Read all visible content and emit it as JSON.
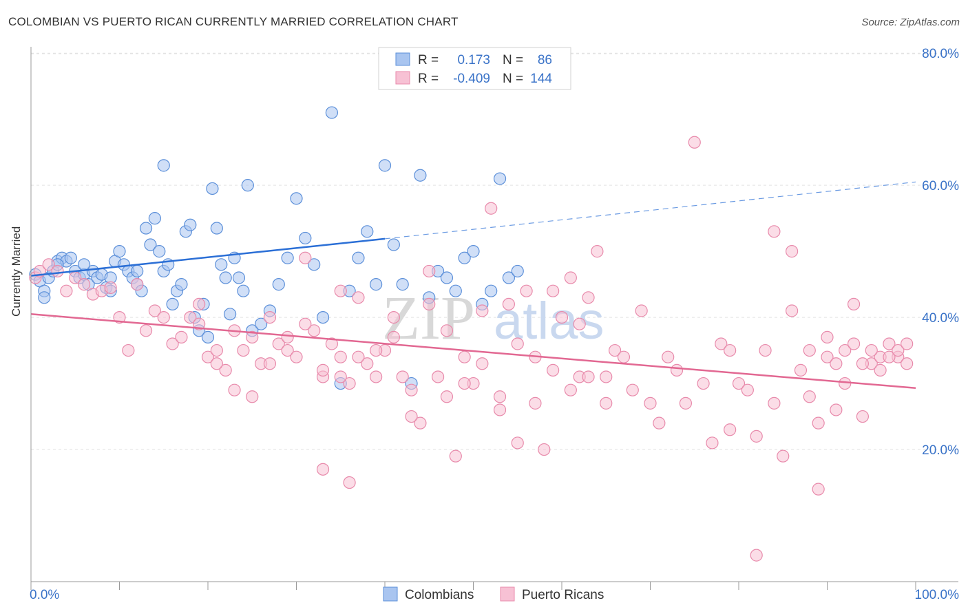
{
  "header": {
    "title": "COLOMBIAN VS PUERTO RICAN CURRENTLY MARRIED CORRELATION CHART",
    "source": "Source: ZipAtlas.com"
  },
  "watermark": {
    "part1": "ZIP",
    "part2": "atlas"
  },
  "legend": {
    "rows": [
      {
        "r_label": "R =",
        "r_value": "0.173",
        "n_label": "N =",
        "n_value": "86",
        "color": "#6d9eeb"
      },
      {
        "r_label": "R =",
        "r_value": "-0.409",
        "n_label": "N =",
        "n_value": "144",
        "color": "#f4a0bd"
      }
    ],
    "bottom": [
      "Colombians",
      "Puerto Ricans"
    ]
  },
  "colors": {
    "blue_fill": "#a9c5f0",
    "blue_stroke": "#5b8fd9",
    "blue_line": "#2b6fd6",
    "pink_fill": "#f7c1d4",
    "pink_stroke": "#e88aab",
    "pink_line": "#e26892",
    "axis_label": "#3a73c8"
  },
  "chart_data": {
    "type": "scatter",
    "ylabel": "Currently Married",
    "xlim": [
      0,
      100
    ],
    "ylim": [
      0,
      82
    ],
    "x_tick_labels": [
      "0.0%",
      "100.0%"
    ],
    "y_ticks": [
      20,
      40,
      60,
      80
    ],
    "y_tick_labels": [
      "20.0%",
      "40.0%",
      "60.0%",
      "80.0%"
    ],
    "grid": true,
    "series": [
      {
        "name": "Colombians",
        "r": 0.173,
        "n": 86,
        "trend": {
          "x0": 0,
          "y0": 46.3,
          "x1": 40,
          "y1": 51.9,
          "dash_to_x": 100,
          "dash_to_y": 60.5
        },
        "points": [
          [
            0.5,
            46.5
          ],
          [
            1,
            45.5
          ],
          [
            1.5,
            44
          ],
          [
            2,
            46
          ],
          [
            2.5,
            47
          ],
          [
            3,
            48.5
          ],
          [
            3.5,
            49
          ],
          [
            4,
            48.5
          ],
          [
            4.5,
            49
          ],
          [
            5,
            47
          ],
          [
            5.5,
            46
          ],
          [
            6,
            46.5
          ],
          [
            6.5,
            45
          ],
          [
            7,
            47
          ],
          [
            7.5,
            46
          ],
          [
            8,
            46.5
          ],
          [
            8.5,
            44.5
          ],
          [
            9,
            44
          ],
          [
            9.5,
            48.5
          ],
          [
            10,
            50
          ],
          [
            10.5,
            48
          ],
          [
            11,
            47
          ],
          [
            11.5,
            46
          ],
          [
            12,
            45
          ],
          [
            12.5,
            44
          ],
          [
            13,
            53.5
          ],
          [
            13.5,
            51
          ],
          [
            14,
            55
          ],
          [
            14.5,
            50
          ],
          [
            15,
            47
          ],
          [
            15.5,
            48
          ],
          [
            16,
            42
          ],
          [
            16.5,
            44
          ],
          [
            17,
            45
          ],
          [
            17.5,
            53
          ],
          [
            18,
            54
          ],
          [
            18.5,
            40
          ],
          [
            19,
            38
          ],
          [
            19.5,
            42
          ],
          [
            20,
            37
          ],
          [
            20.5,
            59.5
          ],
          [
            21,
            53.5
          ],
          [
            21.5,
            48
          ],
          [
            22,
            46
          ],
          [
            22.5,
            40.5
          ],
          [
            23,
            49
          ],
          [
            23.5,
            46
          ],
          [
            24,
            44
          ],
          [
            24.5,
            60
          ],
          [
            25,
            38
          ],
          [
            26,
            39
          ],
          [
            27,
            41
          ],
          [
            28,
            45
          ],
          [
            29,
            49
          ],
          [
            30,
            58
          ],
          [
            31,
            52
          ],
          [
            32,
            48
          ],
          [
            33,
            40
          ],
          [
            34,
            71
          ],
          [
            35,
            30
          ],
          [
            36,
            44
          ],
          [
            37,
            49
          ],
          [
            38,
            53
          ],
          [
            39,
            45
          ],
          [
            40,
            63
          ],
          [
            41,
            51
          ],
          [
            42,
            45
          ],
          [
            43,
            30
          ],
          [
            44,
            61.5
          ],
          [
            45,
            43
          ],
          [
            46,
            47
          ],
          [
            47,
            46
          ],
          [
            48,
            44
          ],
          [
            49,
            49
          ],
          [
            50,
            50
          ],
          [
            51,
            42
          ],
          [
            52,
            44
          ],
          [
            53,
            61
          ],
          [
            54,
            46
          ],
          [
            55,
            47
          ],
          [
            1.5,
            43
          ],
          [
            3,
            48
          ],
          [
            6,
            48
          ],
          [
            9,
            46
          ],
          [
            12,
            47
          ],
          [
            15,
            63
          ]
        ]
      },
      {
        "name": "Puerto Ricans",
        "r": -0.409,
        "n": 144,
        "trend": {
          "x0": 0,
          "y0": 40.5,
          "x1": 100,
          "y1": 29.3
        },
        "points": [
          [
            0.5,
            46
          ],
          [
            1,
            47
          ],
          [
            2,
            48
          ],
          [
            3,
            47
          ],
          [
            4,
            44
          ],
          [
            5,
            46
          ],
          [
            6,
            45
          ],
          [
            7,
            43.5
          ],
          [
            8,
            44
          ],
          [
            9,
            44.5
          ],
          [
            10,
            40
          ],
          [
            11,
            35
          ],
          [
            12,
            45
          ],
          [
            13,
            38
          ],
          [
            14,
            41
          ],
          [
            15,
            40
          ],
          [
            16,
            36
          ],
          [
            17,
            37
          ],
          [
            18,
            40
          ],
          [
            19,
            39
          ],
          [
            20,
            34
          ],
          [
            21,
            35
          ],
          [
            22,
            32
          ],
          [
            23,
            38
          ],
          [
            24,
            35
          ],
          [
            25,
            37
          ],
          [
            26,
            33
          ],
          [
            27,
            40
          ],
          [
            28,
            36
          ],
          [
            29,
            35
          ],
          [
            30,
            34
          ],
          [
            31,
            49
          ],
          [
            32,
            38
          ],
          [
            33,
            31
          ],
          [
            34,
            36
          ],
          [
            35,
            34
          ],
          [
            36,
            30
          ],
          [
            37,
            43
          ],
          [
            38,
            33
          ],
          [
            39,
            31
          ],
          [
            40,
            35
          ],
          [
            41,
            37
          ],
          [
            42,
            31
          ],
          [
            43,
            29
          ],
          [
            44,
            24
          ],
          [
            45,
            47
          ],
          [
            46,
            31
          ],
          [
            47,
            38
          ],
          [
            48,
            19
          ],
          [
            49,
            34
          ],
          [
            50,
            30
          ],
          [
            51,
            41
          ],
          [
            52,
            56.5
          ],
          [
            53,
            28
          ],
          [
            54,
            42
          ],
          [
            55,
            21
          ],
          [
            56,
            44
          ],
          [
            57,
            27
          ],
          [
            58,
            20
          ],
          [
            59,
            44
          ],
          [
            60,
            40
          ],
          [
            61,
            46
          ],
          [
            62,
            31
          ],
          [
            63,
            43
          ],
          [
            64,
            50
          ],
          [
            65,
            31
          ],
          [
            66,
            35
          ],
          [
            67,
            34
          ],
          [
            68,
            29
          ],
          [
            69,
            41
          ],
          [
            70,
            27
          ],
          [
            71,
            24
          ],
          [
            72,
            34
          ],
          [
            73,
            32
          ],
          [
            74,
            27
          ],
          [
            75,
            66.5
          ],
          [
            76,
            30
          ],
          [
            77,
            21
          ],
          [
            78,
            36
          ],
          [
            79,
            23
          ],
          [
            80,
            30
          ],
          [
            81,
            29
          ],
          [
            82,
            22
          ],
          [
            83,
            35
          ],
          [
            84,
            27
          ],
          [
            85,
            19
          ],
          [
            86,
            41
          ],
          [
            87,
            32
          ],
          [
            88,
            35
          ],
          [
            89,
            24
          ],
          [
            90,
            37
          ],
          [
            91,
            26
          ],
          [
            92,
            30
          ],
          [
            93,
            42
          ],
          [
            94,
            25
          ],
          [
            95,
            33
          ],
          [
            96,
            34
          ],
          [
            97,
            36
          ],
          [
            98,
            34
          ],
          [
            99,
            33
          ],
          [
            33,
            17
          ],
          [
            36,
            15
          ],
          [
            35,
            44
          ],
          [
            62,
            39
          ],
          [
            79,
            35
          ],
          [
            82,
            4
          ],
          [
            84,
            53
          ],
          [
            86,
            50
          ],
          [
            88,
            28
          ],
          [
            89,
            14
          ],
          [
            90,
            34
          ],
          [
            91,
            33
          ],
          [
            92,
            35
          ],
          [
            93,
            36
          ],
          [
            94,
            33
          ],
          [
            95,
            35
          ],
          [
            96,
            32
          ],
          [
            97,
            34
          ],
          [
            98,
            35
          ],
          [
            99,
            36
          ],
          [
            19,
            42
          ],
          [
            21,
            33
          ],
          [
            23,
            29
          ],
          [
            25,
            28
          ],
          [
            27,
            33
          ],
          [
            29,
            37
          ],
          [
            31,
            39
          ],
          [
            33,
            32
          ],
          [
            35,
            31
          ],
          [
            37,
            34
          ],
          [
            39,
            35
          ],
          [
            41,
            40
          ],
          [
            43,
            25
          ],
          [
            45,
            42
          ],
          [
            47,
            28
          ],
          [
            49,
            30
          ],
          [
            51,
            33
          ],
          [
            53,
            26
          ],
          [
            55,
            36
          ],
          [
            57,
            34
          ],
          [
            59,
            32
          ],
          [
            61,
            29
          ],
          [
            63,
            31
          ],
          [
            65,
            27
          ]
        ]
      }
    ]
  }
}
